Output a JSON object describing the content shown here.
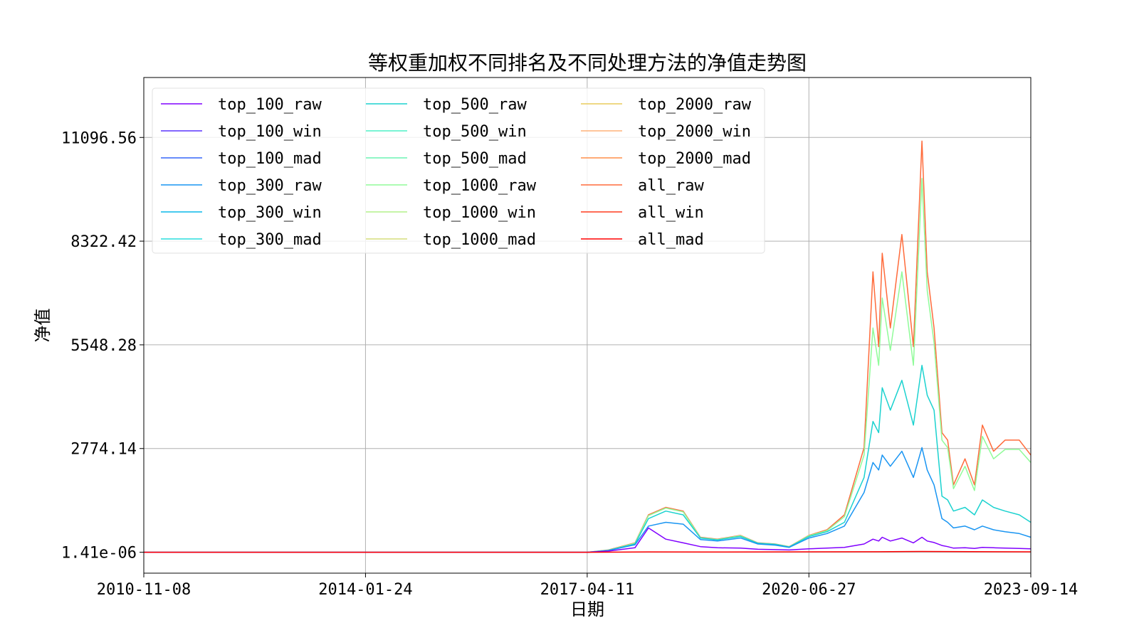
{
  "chart_data": {
    "type": "line",
    "title": "等权重加权不同排名及不同处理方法的净值走势图",
    "xlabel": "日期",
    "ylabel": "净值",
    "x_ticks": [
      "2010-11-08",
      "2014-01-24",
      "2017-04-11",
      "2020-06-27",
      "2023-09-14"
    ],
    "y_ticks": [
      "1.41e-06",
      "2774.14",
      "5548.28",
      "8322.42",
      "11096.56"
    ],
    "xlim": [
      "2010-11-08",
      "2023-09-14"
    ],
    "ylim": [
      -560,
      12700
    ],
    "grid": true,
    "legend_position": "top-left",
    "legend_columns": 3,
    "legend_order": [
      "top_100_raw",
      "top_100_win",
      "top_100_mad",
      "top_300_raw",
      "top_300_win",
      "top_300_mad",
      "top_500_raw",
      "top_500_win",
      "top_500_mad",
      "top_1000_raw",
      "top_1000_win",
      "top_1000_mad",
      "top_2000_raw",
      "top_2000_win",
      "top_2000_mad",
      "all_raw",
      "all_win",
      "all_mad"
    ],
    "series_colors": {
      "top_100_raw": "#8000ff",
      "top_100_win": "#5a35fd",
      "top_100_mad": "#3666f9",
      "top_300_raw": "#1995f2",
      "top_300_win": "#0ab8e8",
      "top_300_mad": "#2adddd",
      "top_500_raw": "#1bd2cf",
      "top_500_win": "#4ef1c6",
      "top_500_mad": "#6cf3b4",
      "top_1000_raw": "#90fb99",
      "top_1000_win": "#b3f18a",
      "top_1000_mad": "#d5de7b",
      "top_2000_raw": "#e8cc5c",
      "top_2000_win": "#ffb279",
      "top_2000_mad": "#ff8f4a",
      "all_raw": "#ff6b3b",
      "all_win": "#ff3c1f",
      "all_mad": "#ff0000"
    },
    "series": [
      {
        "name": "all_raw",
        "x": [
          "2010-11-08",
          "2017-04-11",
          "2017-08-01",
          "2017-12-20",
          "2018-03-01",
          "2018-06-01",
          "2018-09-01",
          "2018-12-01",
          "2019-03-01",
          "2019-07-01",
          "2019-10-01",
          "2020-01-01",
          "2020-03-15",
          "2020-06-27",
          "2020-10-01",
          "2021-01-01",
          "2021-04-15",
          "2021-06-01",
          "2021-07-01",
          "2021-07-20",
          "2021-09-01",
          "2021-11-01",
          "2022-01-01",
          "2022-02-15",
          "2022-03-15",
          "2022-04-20",
          "2022-06-01",
          "2022-07-01",
          "2022-08-01",
          "2022-10-01",
          "2022-11-20",
          "2023-01-01",
          "2023-03-01",
          "2023-05-01",
          "2023-07-15",
          "2023-09-14"
        ],
        "y": [
          0,
          0,
          60,
          250,
          1000,
          1200,
          1100,
          400,
          350,
          450,
          250,
          220,
          150,
          450,
          600,
          1000,
          2800,
          7500,
          5500,
          8000,
          6000,
          8500,
          5500,
          11000,
          7500,
          6000,
          3200,
          3000,
          1800,
          2500,
          1800,
          3400,
          2700,
          3000,
          3000,
          2600
        ]
      },
      {
        "name": "top_1000_raw",
        "x": [
          "2010-11-08",
          "2017-04-11",
          "2017-08-01",
          "2017-12-20",
          "2018-03-01",
          "2018-06-01",
          "2018-09-01",
          "2018-12-01",
          "2019-03-01",
          "2019-07-01",
          "2019-10-01",
          "2020-01-01",
          "2020-03-15",
          "2020-06-27",
          "2020-10-01",
          "2021-01-01",
          "2021-04-15",
          "2021-06-01",
          "2021-07-01",
          "2021-07-20",
          "2021-09-01",
          "2021-11-01",
          "2022-01-01",
          "2022-02-15",
          "2022-03-15",
          "2022-04-20",
          "2022-06-01",
          "2022-07-01",
          "2022-08-01",
          "2022-10-01",
          "2022-11-20",
          "2023-01-01",
          "2023-03-01",
          "2023-05-01",
          "2023-07-15",
          "2023-09-14"
        ],
        "y": [
          0,
          0,
          55,
          240,
          980,
          1180,
          1080,
          390,
          340,
          440,
          245,
          215,
          145,
          440,
          580,
          950,
          2600,
          6000,
          5000,
          6800,
          5400,
          7500,
          5000,
          10000,
          7000,
          5600,
          3000,
          2800,
          1700,
          2300,
          1650,
          3100,
          2500,
          2750,
          2750,
          2400
        ]
      },
      {
        "name": "top_500_raw",
        "x": [
          "2010-11-08",
          "2017-04-11",
          "2017-08-01",
          "2017-12-20",
          "2018-03-01",
          "2018-06-01",
          "2018-09-01",
          "2018-12-01",
          "2019-03-01",
          "2019-07-01",
          "2019-10-01",
          "2020-01-01",
          "2020-03-15",
          "2020-06-27",
          "2020-10-01",
          "2021-01-01",
          "2021-04-15",
          "2021-06-01",
          "2021-07-01",
          "2021-07-20",
          "2021-09-01",
          "2021-11-01",
          "2022-01-01",
          "2022-02-15",
          "2022-03-15",
          "2022-04-20",
          "2022-06-01",
          "2022-07-01",
          "2022-08-01",
          "2022-10-01",
          "2022-11-20",
          "2023-01-01",
          "2023-03-01",
          "2023-05-01",
          "2023-07-15",
          "2023-09-14"
        ],
        "y": [
          0,
          0,
          50,
          220,
          900,
          1100,
          1000,
          380,
          330,
          420,
          240,
          210,
          140,
          420,
          550,
          800,
          2000,
          3500,
          3200,
          4400,
          3800,
          4600,
          3400,
          5000,
          4200,
          3800,
          1500,
          1400,
          1100,
          1200,
          1000,
          1400,
          1200,
          1100,
          1000,
          800
        ]
      },
      {
        "name": "top_300_raw",
        "x": [
          "2010-11-08",
          "2017-04-11",
          "2017-08-01",
          "2017-12-20",
          "2018-03-01",
          "2018-06-01",
          "2018-09-01",
          "2018-12-01",
          "2019-03-01",
          "2019-07-01",
          "2019-10-01",
          "2020-01-01",
          "2020-03-15",
          "2020-06-27",
          "2020-10-01",
          "2021-01-01",
          "2021-04-15",
          "2021-06-01",
          "2021-07-01",
          "2021-07-20",
          "2021-09-01",
          "2021-11-01",
          "2022-01-01",
          "2022-02-15",
          "2022-03-15",
          "2022-04-20",
          "2022-06-01",
          "2022-07-01",
          "2022-08-01",
          "2022-10-01",
          "2022-11-20",
          "2023-01-01",
          "2023-03-01",
          "2023-05-01",
          "2023-07-15",
          "2023-09-14"
        ],
        "y": [
          0,
          0,
          45,
          200,
          700,
          800,
          750,
          340,
          300,
          380,
          220,
          190,
          130,
          380,
          500,
          700,
          1600,
          2400,
          2200,
          2600,
          2300,
          2700,
          2000,
          2800,
          2200,
          1800,
          900,
          800,
          650,
          700,
          600,
          700,
          600,
          550,
          500,
          400
        ]
      },
      {
        "name": "top_100_raw",
        "x": [
          "2010-11-08",
          "2017-04-11",
          "2017-08-01",
          "2017-12-20",
          "2018-03-01",
          "2018-06-01",
          "2018-09-01",
          "2018-12-01",
          "2019-03-01",
          "2019-07-01",
          "2019-10-01",
          "2020-01-01",
          "2020-03-15",
          "2020-06-27",
          "2020-10-01",
          "2021-01-01",
          "2021-04-15",
          "2021-06-01",
          "2021-07-01",
          "2021-07-20",
          "2021-09-01",
          "2021-11-01",
          "2022-01-01",
          "2022-02-15",
          "2022-03-15",
          "2022-04-20",
          "2022-06-01",
          "2022-07-01",
          "2022-08-01",
          "2022-10-01",
          "2022-11-20",
          "2023-01-01",
          "2023-03-01",
          "2023-05-01",
          "2023-07-15",
          "2023-09-14"
        ],
        "y": [
          0,
          0,
          30,
          120,
          650,
          350,
          250,
          150,
          120,
          110,
          80,
          70,
          60,
          90,
          110,
          130,
          220,
          350,
          300,
          400,
          300,
          380,
          250,
          400,
          300,
          260,
          180,
          150,
          110,
          120,
          100,
          130,
          120,
          110,
          100,
          90
        ]
      },
      {
        "name": "all_mad",
        "x": [
          "2010-11-08",
          "2017-04-11",
          "2018-03-01",
          "2019-01-01",
          "2021-07-01",
          "2022-02-15",
          "2023-09-14"
        ],
        "y": [
          0,
          0,
          8,
          5,
          12,
          20,
          10
        ]
      }
    ]
  }
}
